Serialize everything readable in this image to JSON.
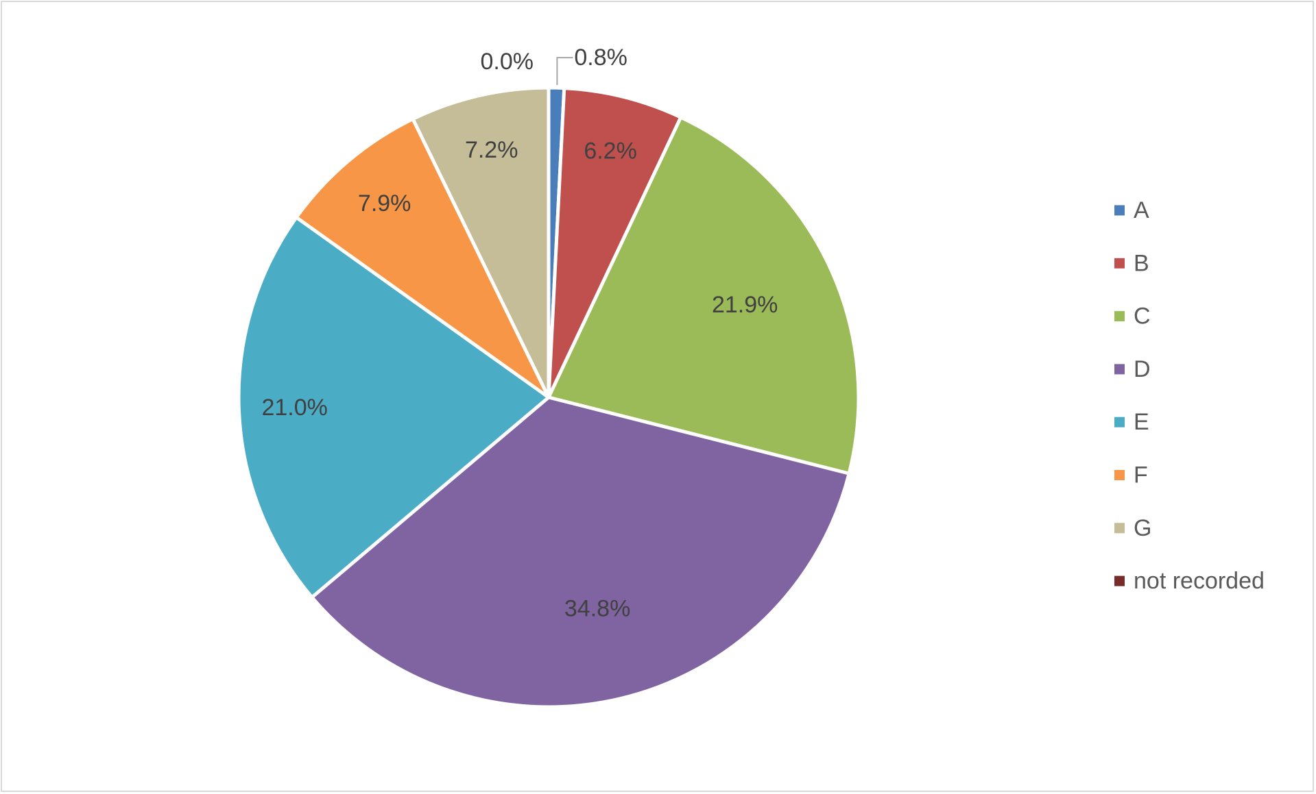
{
  "chart_data": {
    "type": "pie",
    "title": "",
    "categories": [
      "A",
      "B",
      "C",
      "D",
      "E",
      "F",
      "G",
      "not recorded"
    ],
    "values": [
      0.8,
      6.2,
      21.9,
      34.8,
      21.0,
      7.9,
      7.2,
      0.0
    ],
    "labels": [
      "0.8%",
      "6.2%",
      "21.9%",
      "34.8%",
      "21.0%",
      "7.9%",
      "7.2%",
      "0.0%"
    ],
    "colors": [
      "#4a7ebb",
      "#c0504d",
      "#9bbb59",
      "#8064a2",
      "#4bacc6",
      "#f79646",
      "#c4bd97",
      "#772c2a"
    ],
    "start_angle_deg": 0,
    "direction": "clockwise",
    "legend_position": "right"
  }
}
